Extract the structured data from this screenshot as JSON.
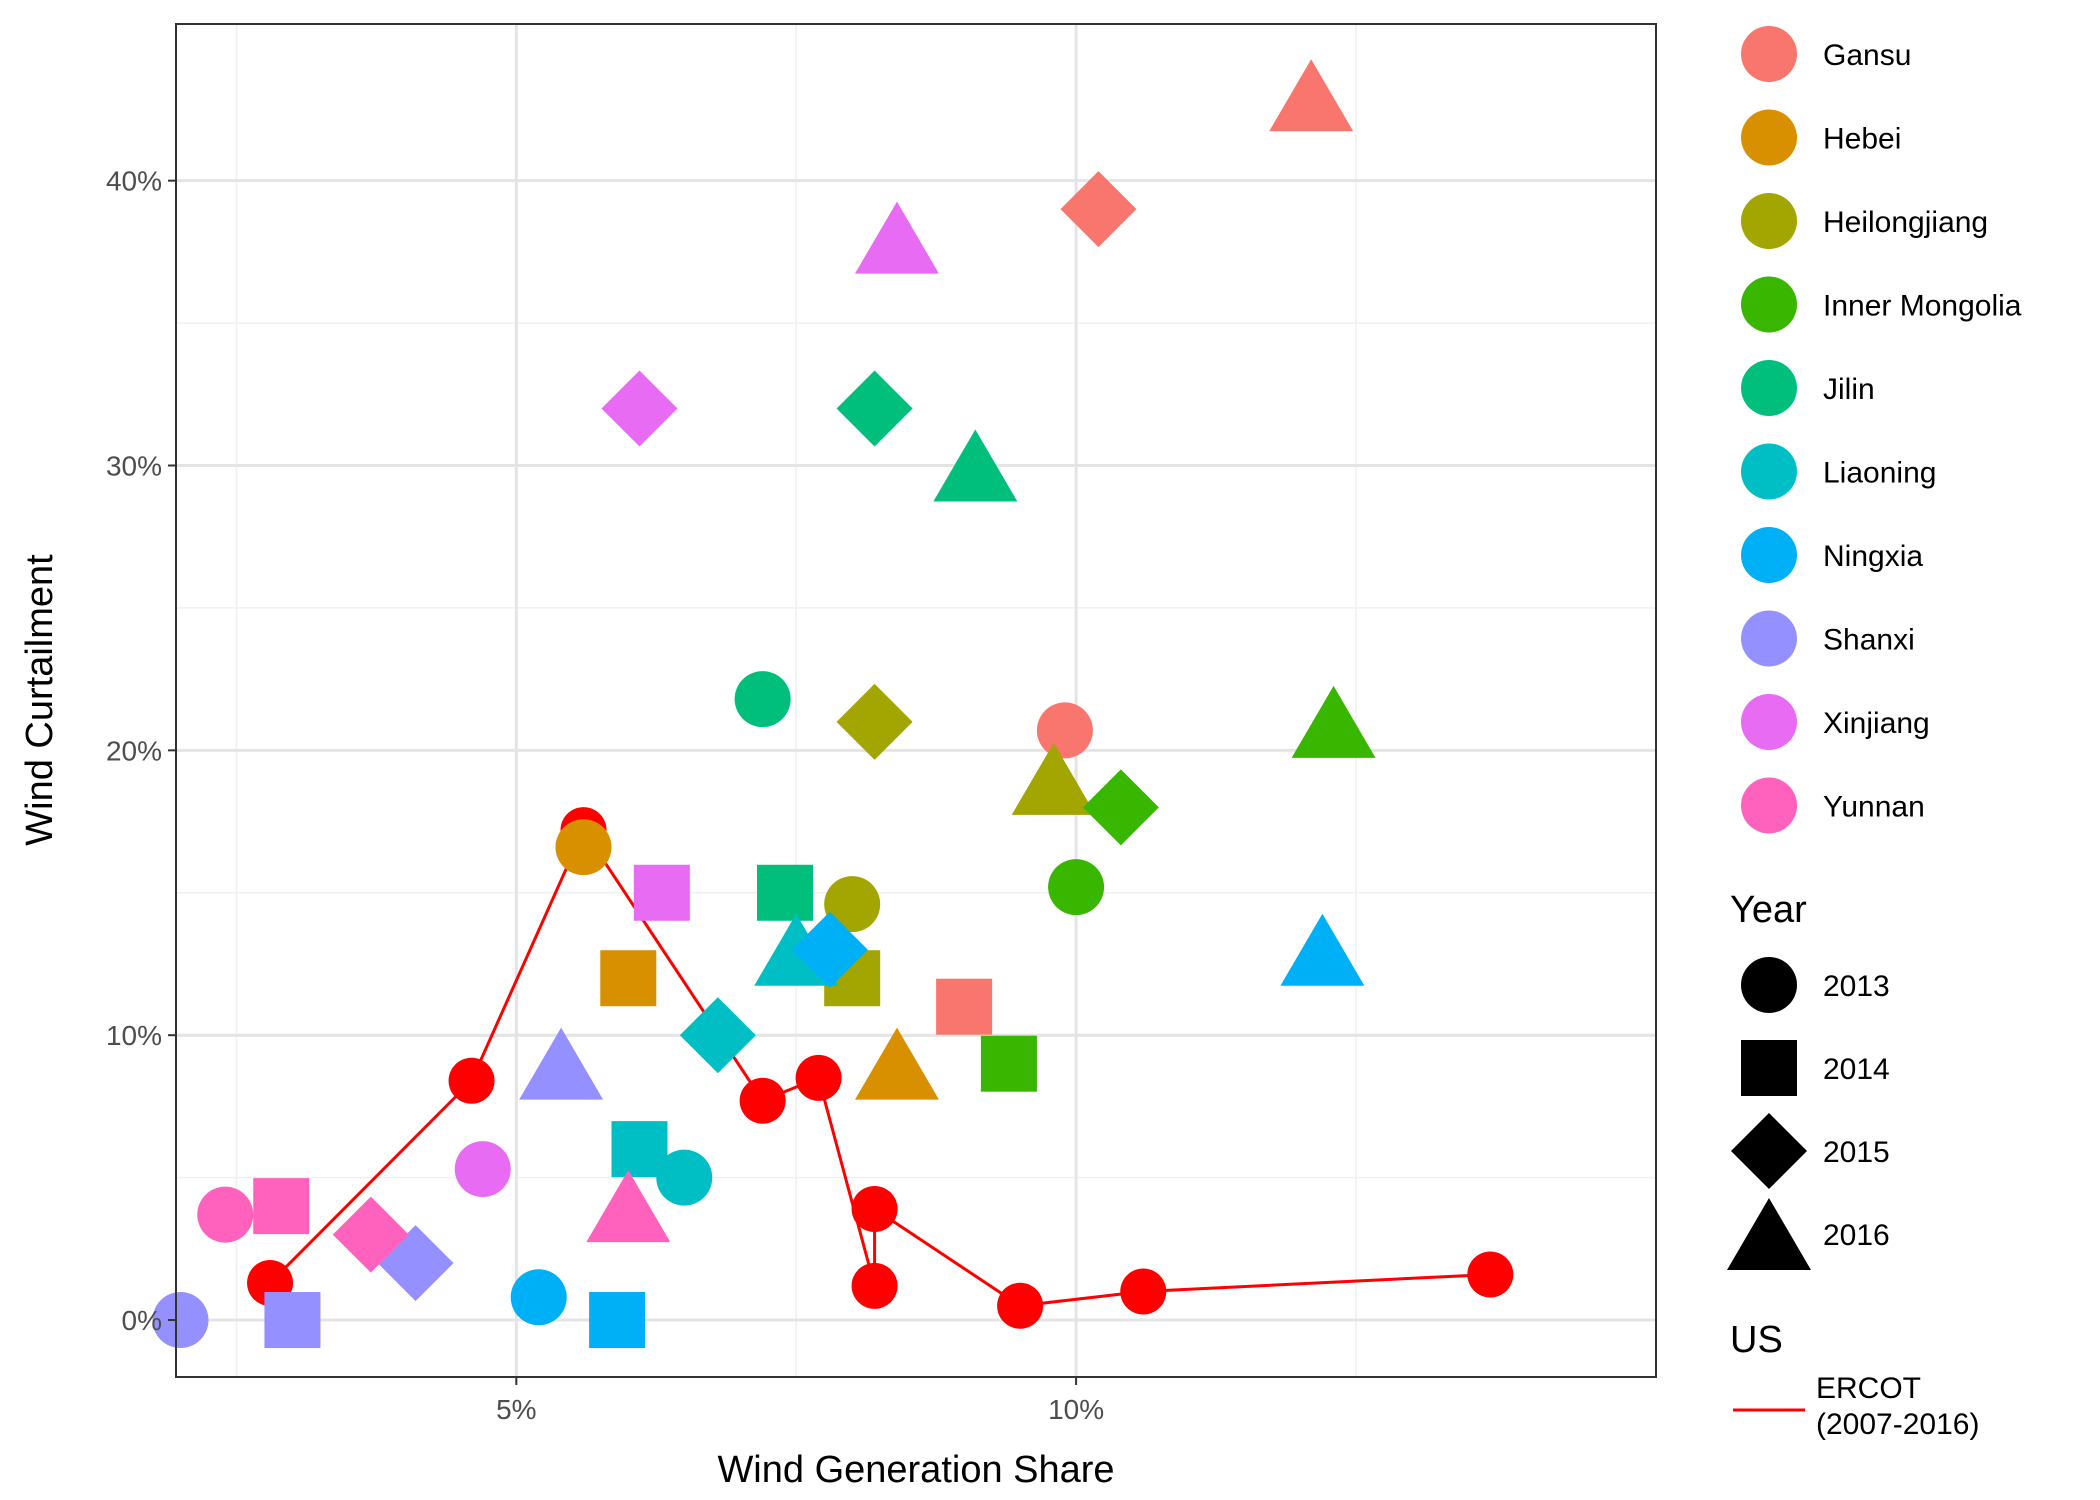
{
  "chart_data": {
    "type": "scatter",
    "xlabel": "Wind Generation Share",
    "ylabel": "Wind Curtailment",
    "xlim": [
      1.96,
      15.18
    ],
    "ylim": [
      -2.0,
      45.5
    ],
    "x_ticks": [
      {
        "value": 5,
        "label": "5%"
      },
      {
        "value": 10,
        "label": "10%"
      }
    ],
    "x_minor": [
      2.5,
      7.5,
      12.5
    ],
    "y_ticks": [
      {
        "value": 0,
        "label": "0%"
      },
      {
        "value": 10,
        "label": "10%"
      },
      {
        "value": 20,
        "label": "20%"
      },
      {
        "value": 30,
        "label": "30%"
      },
      {
        "value": 40,
        "label": "40%"
      }
    ],
    "y_minor": [
      5,
      15,
      25,
      35
    ],
    "grid": true,
    "legend_position": "right",
    "provinces": [
      {
        "name": "Gansu",
        "color": "#F8766D"
      },
      {
        "name": "Hebei",
        "color": "#D89000"
      },
      {
        "name": "Heilongjiang",
        "color": "#A3A500"
      },
      {
        "name": "Inner Mongolia",
        "color": "#39B600"
      },
      {
        "name": "Jilin",
        "color": "#00BF7D"
      },
      {
        "name": "Liaoning",
        "color": "#00BFC4"
      },
      {
        "name": "Ningxia",
        "color": "#00B0F6"
      },
      {
        "name": "Shanxi",
        "color": "#9590FF"
      },
      {
        "name": "Xinjiang",
        "color": "#E76BF3"
      },
      {
        "name": "Yunnan",
        "color": "#FF62BC"
      }
    ],
    "legend_titles": {
      "year": "Year",
      "us": "US"
    },
    "years": [
      {
        "year": "2013",
        "shape": "circle"
      },
      {
        "year": "2014",
        "shape": "square"
      },
      {
        "year": "2015",
        "shape": "diamond"
      },
      {
        "year": "2016",
        "shape": "triangle"
      }
    ],
    "points": [
      {
        "province": "Gansu",
        "year": "2013",
        "x": 9.9,
        "y": 20.7
      },
      {
        "province": "Gansu",
        "year": "2014",
        "x": 9.0,
        "y": 11.0
      },
      {
        "province": "Gansu",
        "year": "2015",
        "x": 10.2,
        "y": 39.0
      },
      {
        "province": "Gansu",
        "year": "2016",
        "x": 12.1,
        "y": 43.0
      },
      {
        "province": "Hebei",
        "year": "2013",
        "x": 5.6,
        "y": 16.6
      },
      {
        "province": "Hebei",
        "year": "2014",
        "x": 6.0,
        "y": 12.0
      },
      {
        "province": "Hebei",
        "year": "2016",
        "x": 8.4,
        "y": 9.0
      },
      {
        "province": "Heilongjiang",
        "year": "2013",
        "x": 8.0,
        "y": 14.6
      },
      {
        "province": "Heilongjiang",
        "year": "2014",
        "x": 8.0,
        "y": 12.0
      },
      {
        "province": "Heilongjiang",
        "year": "2015",
        "x": 8.2,
        "y": 21.0
      },
      {
        "province": "Heilongjiang",
        "year": "2016",
        "x": 9.8,
        "y": 19.0
      },
      {
        "province": "Inner Mongolia",
        "year": "2013",
        "x": 10.0,
        "y": 15.2
      },
      {
        "province": "Inner Mongolia",
        "year": "2014",
        "x": 9.4,
        "y": 9.0
      },
      {
        "province": "Inner Mongolia",
        "year": "2015",
        "x": 10.4,
        "y": 18.0
      },
      {
        "province": "Inner Mongolia",
        "year": "2016",
        "x": 12.3,
        "y": 21.0
      },
      {
        "province": "Jilin",
        "year": "2013",
        "x": 7.2,
        "y": 21.8
      },
      {
        "province": "Jilin",
        "year": "2014",
        "x": 7.4,
        "y": 15.0
      },
      {
        "province": "Jilin",
        "year": "2015",
        "x": 8.2,
        "y": 32.0
      },
      {
        "province": "Jilin",
        "year": "2016",
        "x": 9.1,
        "y": 30.0
      },
      {
        "province": "Liaoning",
        "year": "2013",
        "x": 6.5,
        "y": 5.0
      },
      {
        "province": "Liaoning",
        "year": "2014",
        "x": 6.1,
        "y": 6.0
      },
      {
        "province": "Liaoning",
        "year": "2015",
        "x": 6.8,
        "y": 10.0
      },
      {
        "province": "Liaoning",
        "year": "2016",
        "x": 7.5,
        "y": 13.0
      },
      {
        "province": "Ningxia",
        "year": "2013",
        "x": 5.2,
        "y": 0.8
      },
      {
        "province": "Ningxia",
        "year": "2014",
        "x": 5.9,
        "y": 0.0
      },
      {
        "province": "Ningxia",
        "year": "2015",
        "x": 7.8,
        "y": 13.0
      },
      {
        "province": "Ningxia",
        "year": "2016",
        "x": 12.2,
        "y": 13.0
      },
      {
        "province": "Shanxi",
        "year": "2013",
        "x": 2.0,
        "y": 0.0
      },
      {
        "province": "Shanxi",
        "year": "2014",
        "x": 3.0,
        "y": 0.0
      },
      {
        "province": "Shanxi",
        "year": "2015",
        "x": 4.1,
        "y": 2.0
      },
      {
        "province": "Shanxi",
        "year": "2016",
        "x": 5.4,
        "y": 9.0
      },
      {
        "province": "Xinjiang",
        "year": "2013",
        "x": 4.7,
        "y": 5.3
      },
      {
        "province": "Xinjiang",
        "year": "2014",
        "x": 6.3,
        "y": 15.0
      },
      {
        "province": "Xinjiang",
        "year": "2015",
        "x": 6.1,
        "y": 32.0
      },
      {
        "province": "Xinjiang",
        "year": "2016",
        "x": 8.4,
        "y": 38.0
      },
      {
        "province": "Yunnan",
        "year": "2013",
        "x": 2.4,
        "y": 3.7
      },
      {
        "province": "Yunnan",
        "year": "2014",
        "x": 2.9,
        "y": 4.0
      },
      {
        "province": "Yunnan",
        "year": "2015",
        "x": 3.7,
        "y": 3.0
      },
      {
        "province": "Yunnan",
        "year": "2016",
        "x": 6.0,
        "y": 4.0
      }
    ],
    "ercot": {
      "name": "ERCOT (2007-2016)",
      "name_lines": [
        "ERCOT",
        "(2007-2016)"
      ],
      "color": "#FF0000",
      "x": [
        2.8,
        4.6,
        5.6,
        7.2,
        7.7,
        8.2,
        8.2,
        9.5,
        10.6,
        13.7
      ],
      "y": [
        1.3,
        8.4,
        17.2,
        7.7,
        8.5,
        1.2,
        3.9,
        0.5,
        1.0,
        1.6
      ]
    }
  }
}
